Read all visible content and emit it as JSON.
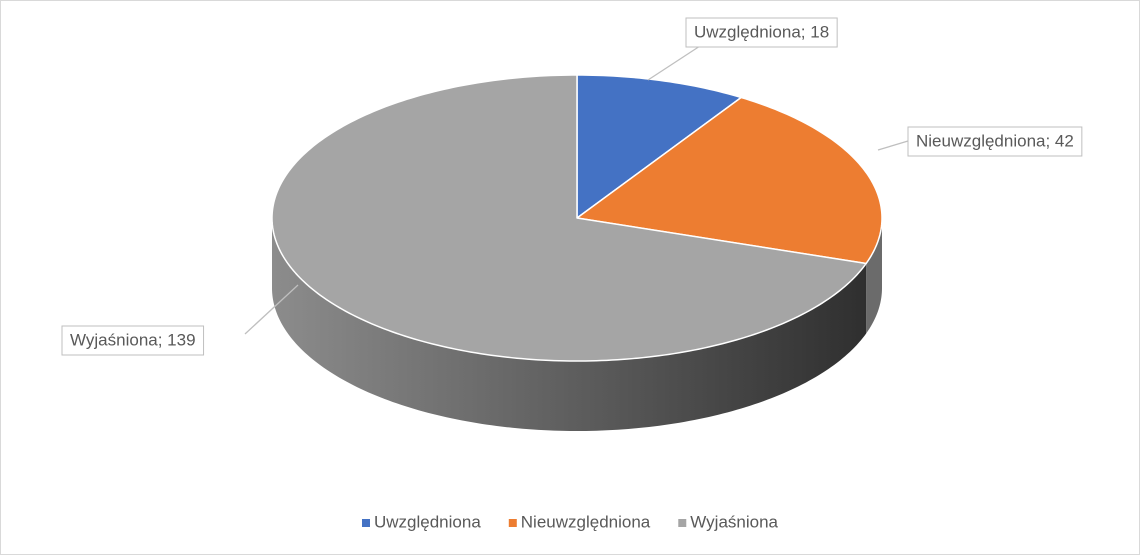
{
  "chart_data": {
    "type": "pie",
    "categories": [
      "Uwzględniona",
      "Nieuwzględniona",
      "Wyjaśniona"
    ],
    "values": [
      18,
      42,
      139
    ],
    "value_labels": [
      "Uwzględniona; 18",
      "Nieuwzględniona; 42",
      "Wyjaśniona; 139"
    ],
    "colors": [
      "#4472c4",
      "#ed7d31",
      "#a5a5a5"
    ],
    "legend": "bottom"
  }
}
